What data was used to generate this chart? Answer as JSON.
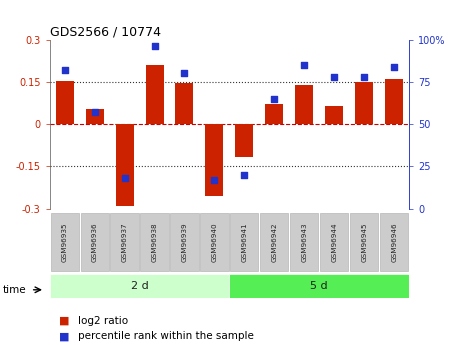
{
  "title": "GDS2566 / 10774",
  "samples": [
    "GSM96935",
    "GSM96936",
    "GSM96937",
    "GSM96938",
    "GSM96939",
    "GSM96940",
    "GSM96941",
    "GSM96942",
    "GSM96943",
    "GSM96944",
    "GSM96945",
    "GSM96946"
  ],
  "log2_ratio": [
    0.155,
    0.055,
    -0.29,
    0.21,
    0.145,
    -0.255,
    -0.115,
    0.07,
    0.14,
    0.065,
    0.15,
    0.16
  ],
  "percentile_rank": [
    82,
    57,
    18,
    96,
    80,
    17,
    20,
    65,
    85,
    78,
    78,
    84
  ],
  "group_labels": [
    "2 d",
    "5 d"
  ],
  "group_sizes": [
    6,
    6
  ],
  "group_colors": [
    "#ccffcc",
    "#55ee55"
  ],
  "sample_box_color": "#cccccc",
  "sample_box_edge": "#aaaaaa",
  "bar_color": "#cc2200",
  "dot_color": "#2233cc",
  "ylim": [
    -0.3,
    0.3
  ],
  "right_ylim": [
    0,
    100
  ],
  "right_yticks": [
    0,
    25,
    50,
    75,
    100
  ],
  "right_yticklabels": [
    "0",
    "25",
    "50",
    "75",
    "100%"
  ],
  "yticks": [
    -0.3,
    -0.15,
    0.0,
    0.15,
    0.3
  ],
  "hlines": [
    0.15,
    0.0,
    -0.15
  ],
  "hline_styles": [
    "dotted",
    "dashed",
    "dotted"
  ],
  "hline_colors": [
    "#333333",
    "#cc0000",
    "#333333"
  ],
  "bg_color": "#ffffff"
}
